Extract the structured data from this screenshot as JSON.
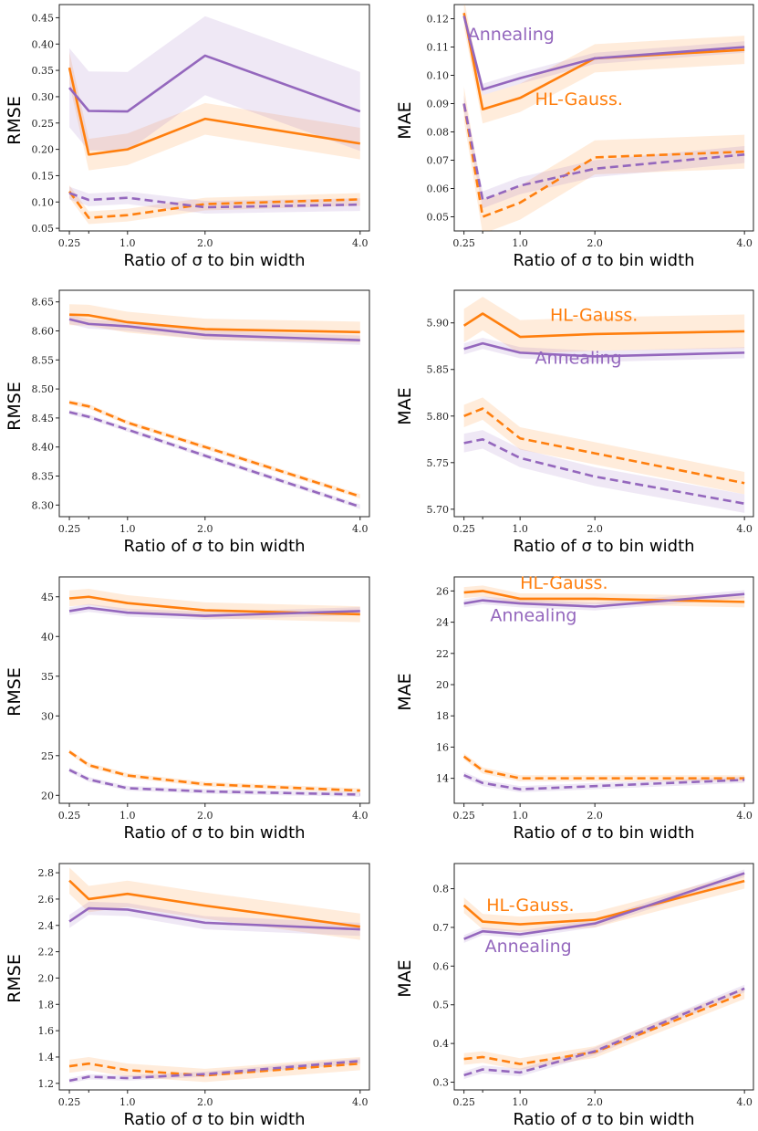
{
  "colors": {
    "hl_gauss": "#ff7f0e",
    "annealing": "#9467bd"
  },
  "chart_data": [
    {
      "type": "line",
      "xlabel": "Ratio of σ to bin width",
      "ylabel": "RMSE",
      "xticks": [
        0.25,
        1.0,
        2.0,
        4.0
      ],
      "xlim": [
        0.12,
        4.12
      ],
      "yticks": [
        "0.05",
        "0.10",
        "0.15",
        "0.20",
        "0.25",
        "0.30",
        "0.35",
        "0.40",
        "0.45"
      ],
      "ylim": [
        0.045,
        0.475
      ],
      "annotations": [],
      "x": [
        0.25,
        0.5,
        1.0,
        2.0,
        4.0
      ],
      "series": [
        {
          "key": "hl_gauss",
          "style": "solid",
          "values": [
            0.355,
            0.19,
            0.2,
            0.258,
            0.211
          ],
          "band": 0.03
        },
        {
          "key": "annealing",
          "style": "solid",
          "values": [
            0.317,
            0.273,
            0.272,
            0.378,
            0.272
          ],
          "band": 0.075
        },
        {
          "key": "hl_gauss",
          "style": "dashed",
          "values": [
            0.12,
            0.07,
            0.075,
            0.096,
            0.105
          ],
          "band": 0.012
        },
        {
          "key": "annealing",
          "style": "dashed",
          "values": [
            0.117,
            0.104,
            0.108,
            0.09,
            0.095
          ],
          "band": 0.012
        }
      ]
    },
    {
      "type": "line",
      "xlabel": "Ratio of σ to bin width",
      "ylabel": "MAE",
      "xticks": [
        0.25,
        1.0,
        2.0,
        4.0
      ],
      "xlim": [
        0.12,
        4.12
      ],
      "yticks": [
        "0.05",
        "0.06",
        "0.07",
        "0.08",
        "0.09",
        "0.10",
        "0.11",
        "0.12"
      ],
      "ylim": [
        0.045,
        0.125
      ],
      "annotations": [
        {
          "text": "Annealing",
          "key": "annealing",
          "x": 0.3,
          "y": 0.1125
        },
        {
          "text": "HL-Gauss.",
          "key": "hl_gauss",
          "x": 1.2,
          "y": 0.0895
        }
      ],
      "x": [
        0.25,
        0.5,
        1.0,
        2.0,
        4.0
      ],
      "series": [
        {
          "key": "hl_gauss",
          "style": "solid",
          "values": [
            0.122,
            0.088,
            0.092,
            0.106,
            0.109
          ],
          "band": 0.005
        },
        {
          "key": "annealing",
          "style": "solid",
          "values": [
            0.121,
            0.095,
            0.099,
            0.106,
            0.11
          ],
          "band": 0.002
        },
        {
          "key": "hl_gauss",
          "style": "dashed",
          "values": [
            0.09,
            0.05,
            0.055,
            0.071,
            0.073
          ],
          "band": 0.006
        },
        {
          "key": "annealing",
          "style": "dashed",
          "values": [
            0.09,
            0.056,
            0.061,
            0.067,
            0.072
          ],
          "band": 0.003
        }
      ]
    },
    {
      "type": "line",
      "xlabel": "Ratio of σ to bin width",
      "ylabel": "RMSE",
      "xticks": [
        0.25,
        1.0,
        2.0,
        4.0
      ],
      "xlim": [
        0.12,
        4.12
      ],
      "yticks": [
        "8.30",
        "8.35",
        "8.40",
        "8.45",
        "8.50",
        "8.55",
        "8.60",
        "8.65"
      ],
      "ylim": [
        8.28,
        8.67
      ],
      "annotations": [],
      "x": [
        0.25,
        0.5,
        1.0,
        2.0,
        4.0
      ],
      "series": [
        {
          "key": "hl_gauss",
          "style": "solid",
          "values": [
            8.628,
            8.627,
            8.615,
            8.603,
            8.598
          ],
          "band": 0.018
        },
        {
          "key": "annealing",
          "style": "solid",
          "values": [
            8.62,
            8.612,
            8.608,
            8.593,
            8.584
          ],
          "band": 0.008
        },
        {
          "key": "hl_gauss",
          "style": "dashed",
          "values": [
            8.477,
            8.47,
            8.442,
            8.4,
            8.315
          ],
          "band": 0.004
        },
        {
          "key": "annealing",
          "style": "dashed",
          "values": [
            8.46,
            8.452,
            8.43,
            8.385,
            8.297
          ],
          "band": 0.004
        }
      ]
    },
    {
      "type": "line",
      "xlabel": "Ratio of σ to bin width",
      "ylabel": "MAE",
      "xticks": [
        0.25,
        1.0,
        2.0,
        4.0
      ],
      "xlim": [
        0.12,
        4.12
      ],
      "yticks": [
        "5.70",
        "5.75",
        "5.80",
        "5.85",
        "5.90"
      ],
      "ylim": [
        5.692,
        5.935
      ],
      "annotations": [
        {
          "text": "HL-Gauss.",
          "key": "hl_gauss",
          "x": 1.4,
          "y": 5.902
        },
        {
          "text": "Annealing",
          "key": "annealing",
          "x": 1.2,
          "y": 5.856
        }
      ],
      "x": [
        0.25,
        0.5,
        1.0,
        2.0,
        4.0
      ],
      "series": [
        {
          "key": "hl_gauss",
          "style": "solid",
          "values": [
            5.897,
            5.91,
            5.885,
            5.888,
            5.891
          ],
          "band": 0.018
        },
        {
          "key": "annealing",
          "style": "solid",
          "values": [
            5.872,
            5.878,
            5.868,
            5.864,
            5.868
          ],
          "band": 0.006
        },
        {
          "key": "hl_gauss",
          "style": "dashed",
          "values": [
            5.8,
            5.808,
            5.776,
            5.76,
            5.728
          ],
          "band": 0.012
        },
        {
          "key": "annealing",
          "style": "dashed",
          "values": [
            5.771,
            5.775,
            5.755,
            5.735,
            5.706
          ],
          "band": 0.01
        }
      ]
    },
    {
      "type": "line",
      "xlabel": "Ratio of σ to bin width",
      "ylabel": "RMSE",
      "xticks": [
        0.25,
        1.0,
        2.0,
        4.0
      ],
      "xlim": [
        0.12,
        4.12
      ],
      "yticks": [
        "20",
        "25",
        "30",
        "35",
        "40",
        "45"
      ],
      "ylim": [
        19,
        47.5
      ],
      "annotations": [],
      "x": [
        0.25,
        0.5,
        1.0,
        2.0,
        4.0
      ],
      "series": [
        {
          "key": "hl_gauss",
          "style": "solid",
          "values": [
            44.8,
            45.0,
            44.2,
            43.3,
            42.8
          ],
          "band": 1.0
        },
        {
          "key": "annealing",
          "style": "solid",
          "values": [
            43.2,
            43.6,
            43.0,
            42.6,
            43.2
          ],
          "band": 0.5
        },
        {
          "key": "hl_gauss",
          "style": "dashed",
          "values": [
            25.5,
            23.8,
            22.5,
            21.4,
            20.6
          ],
          "band": 0.3
        },
        {
          "key": "annealing",
          "style": "dashed",
          "values": [
            23.2,
            22.0,
            20.9,
            20.5,
            20.1
          ],
          "band": 0.3
        }
      ]
    },
    {
      "type": "line",
      "xlabel": "Ratio of σ to bin width",
      "ylabel": "MAE",
      "xticks": [
        0.25,
        1.0,
        2.0,
        4.0
      ],
      "xlim": [
        0.12,
        4.12
      ],
      "yticks": [
        "14",
        "16",
        "18",
        "20",
        "22",
        "24",
        "26"
      ],
      "ylim": [
        12.4,
        26.9
      ],
      "annotations": [
        {
          "text": "HL-Gauss.",
          "key": "hl_gauss",
          "x": 1.0,
          "y": 26.15
        },
        {
          "text": "Annealing",
          "key": "annealing",
          "x": 0.6,
          "y": 24.05
        }
      ],
      "x": [
        0.25,
        0.5,
        1.0,
        2.0,
        4.0
      ],
      "series": [
        {
          "key": "hl_gauss",
          "style": "solid",
          "values": [
            25.9,
            26.0,
            25.5,
            25.5,
            25.3
          ],
          "band": 0.35
        },
        {
          "key": "annealing",
          "style": "solid",
          "values": [
            25.2,
            25.4,
            25.2,
            25.0,
            25.8
          ],
          "band": 0.25
        },
        {
          "key": "hl_gauss",
          "style": "dashed",
          "values": [
            15.4,
            14.5,
            14.0,
            14.0,
            14.0
          ],
          "band": 0.2
        },
        {
          "key": "annealing",
          "style": "dashed",
          "values": [
            14.2,
            13.7,
            13.3,
            13.5,
            13.9
          ],
          "band": 0.2
        }
      ]
    },
    {
      "type": "line",
      "xlabel": "Ratio of σ to bin width",
      "ylabel": "RMSE",
      "xticks": [
        0.25,
        1.0,
        2.0,
        4.0
      ],
      "xlim": [
        0.12,
        4.12
      ],
      "yticks": [
        "1.2",
        "1.4",
        "1.6",
        "1.8",
        "2.0",
        "2.2",
        "2.4",
        "2.6",
        "2.8"
      ],
      "ylim": [
        1.15,
        2.87
      ],
      "annotations": [],
      "x": [
        0.25,
        0.5,
        1.0,
        2.0,
        4.0
      ],
      "series": [
        {
          "key": "hl_gauss",
          "style": "solid",
          "values": [
            2.74,
            2.6,
            2.64,
            2.55,
            2.39
          ],
          "band": 0.1
        },
        {
          "key": "annealing",
          "style": "solid",
          "values": [
            2.43,
            2.53,
            2.52,
            2.42,
            2.37
          ],
          "band": 0.05
        },
        {
          "key": "hl_gauss",
          "style": "dashed",
          "values": [
            1.33,
            1.35,
            1.3,
            1.26,
            1.35
          ],
          "band": 0.05
        },
        {
          "key": "annealing",
          "style": "dashed",
          "values": [
            1.22,
            1.25,
            1.24,
            1.27,
            1.37
          ],
          "band": 0.02
        }
      ]
    },
    {
      "type": "line",
      "xlabel": "Ratio of σ to bin width",
      "ylabel": "MAE",
      "xticks": [
        0.25,
        1.0,
        2.0,
        4.0
      ],
      "xlim": [
        0.12,
        4.12
      ],
      "yticks": [
        "0.3",
        "0.4",
        "0.5",
        "0.6",
        "0.7",
        "0.8"
      ],
      "ylim": [
        0.28,
        0.865
      ],
      "annotations": [
        {
          "text": "HL-Gauss.",
          "key": "hl_gauss",
          "x": 0.55,
          "y": 0.742
        },
        {
          "text": "Annealing",
          "key": "annealing",
          "x": 0.53,
          "y": 0.636
        }
      ],
      "x": [
        0.25,
        0.5,
        1.0,
        2.0,
        4.0
      ],
      "series": [
        {
          "key": "hl_gauss",
          "style": "solid",
          "values": [
            0.757,
            0.715,
            0.708,
            0.72,
            0.82
          ],
          "band": 0.02
        },
        {
          "key": "annealing",
          "style": "solid",
          "values": [
            0.67,
            0.69,
            0.682,
            0.71,
            0.84
          ],
          "band": 0.01
        },
        {
          "key": "hl_gauss",
          "style": "dashed",
          "values": [
            0.36,
            0.365,
            0.347,
            0.378,
            0.53
          ],
          "band": 0.015
        },
        {
          "key": "annealing",
          "style": "dashed",
          "values": [
            0.318,
            0.333,
            0.325,
            0.38,
            0.542
          ],
          "band": 0.01
        }
      ]
    }
  ]
}
